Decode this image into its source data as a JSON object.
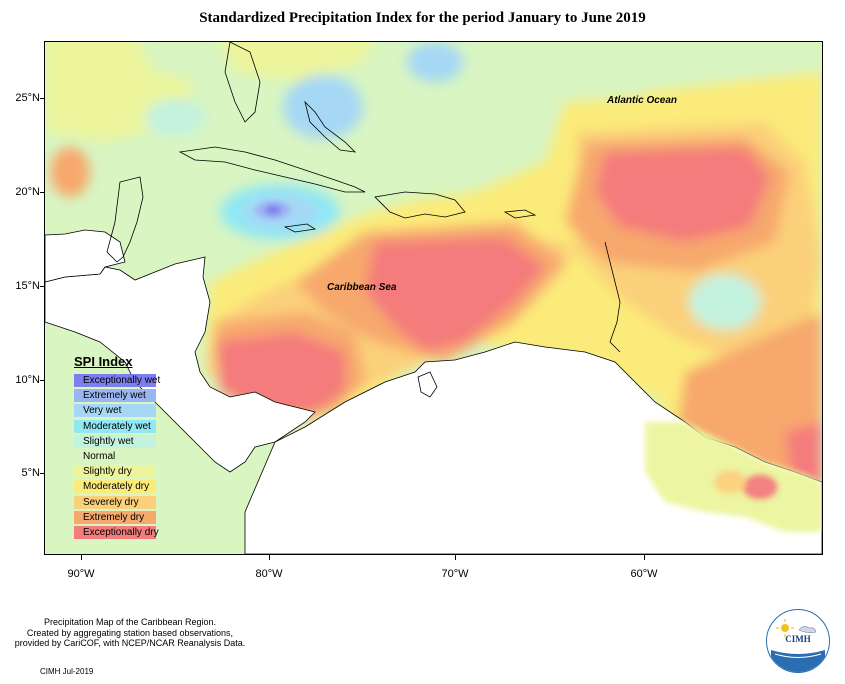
{
  "title": "Standardized Precipitation Index for the period January to June 2019",
  "map": {
    "ocean_labels": {
      "atlantic": "Atlantic Ocean",
      "caribbean": "Caribbean Sea"
    },
    "lat_labels": [
      "25°N",
      "20°N",
      "15°N",
      "10°N",
      "5°N"
    ],
    "lon_labels": [
      "90°W",
      "80°W",
      "70°W",
      "60°W"
    ]
  },
  "legend": {
    "title": "SPI Index",
    "items": [
      {
        "label": "Exceptionally wet",
        "color": "#7d7ff0"
      },
      {
        "label": "Extremely wet",
        "color": "#9bb4f2"
      },
      {
        "label": "Very wet",
        "color": "#a6d8f5"
      },
      {
        "label": "Moderately wet",
        "color": "#8fe8f4"
      },
      {
        "label": "Slightly wet",
        "color": "#c3f2df"
      },
      {
        "label": "Normal",
        "color": "#d8f5c2"
      },
      {
        "label": "Slightly dry",
        "color": "#ecf59c"
      },
      {
        "label": "Moderately dry",
        "color": "#fbeb7a"
      },
      {
        "label": "Severely dry",
        "color": "#fbd07a"
      },
      {
        "label": "Extremely dry",
        "color": "#f7a86d"
      },
      {
        "label": "Exceptionally dry",
        "color": "#f47c7c"
      }
    ]
  },
  "footer": {
    "lines": [
      "Precipitation Map of the Caribbean Region.",
      "Created by aggregating station based observations,",
      "provided by CariCOF, with NCEP/NCAR Reanalysis Data."
    ],
    "credit": "CIMH Jul-2019",
    "logo_text": "CIMH"
  }
}
